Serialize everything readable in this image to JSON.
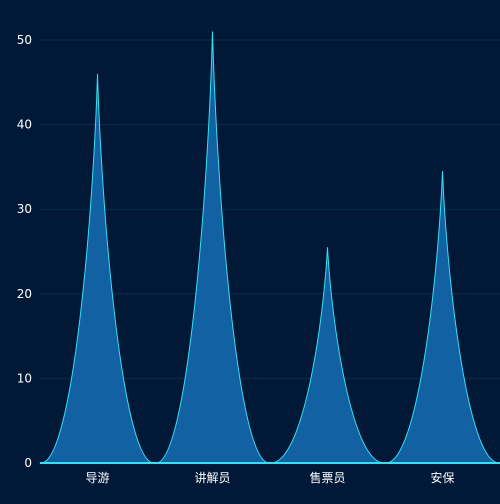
{
  "chart_data": {
    "type": "area",
    "categories": [
      "导游",
      "讲解员",
      "售票员",
      "安保"
    ],
    "values": [
      46,
      51,
      25.5,
      34.5
    ],
    "ylim": [
      0,
      50
    ],
    "yticks": [
      0,
      10,
      20,
      30,
      40,
      50
    ],
    "grid": true,
    "title": "",
    "xlabel": "",
    "ylabel": ""
  },
  "colors": {
    "background": "#011937",
    "gridline": "#0b2d4f",
    "area_fill": "#1161a3",
    "area_stroke": "#36dff4",
    "axis_line": "#36dff4",
    "tick_text": "#ffffff"
  }
}
